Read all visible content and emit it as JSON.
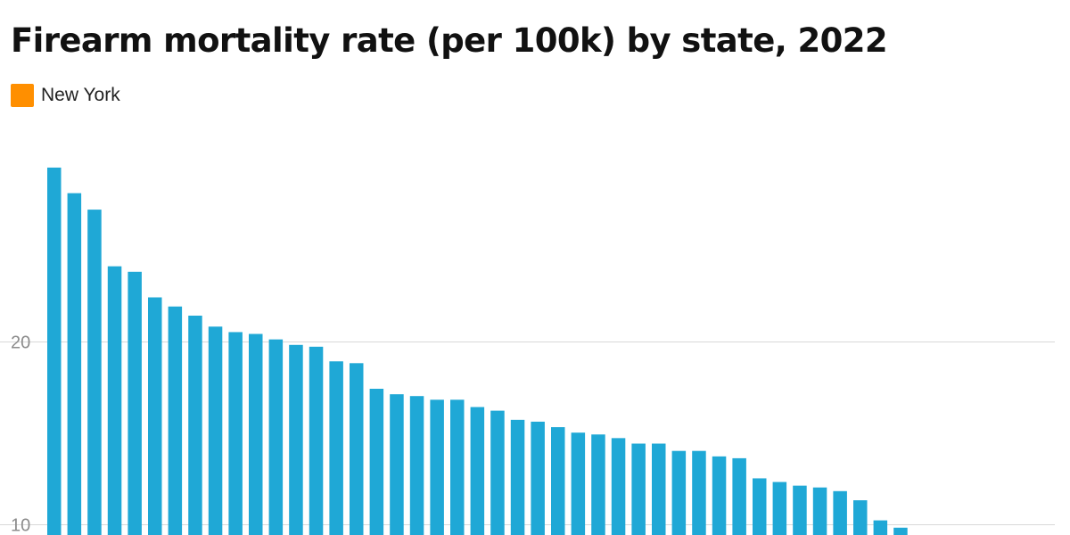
{
  "chart_data": {
    "type": "bar",
    "title": "Firearm mortality rate (per 100k) by state, 2022",
    "legend": [
      {
        "name": "New York",
        "color": "#ff8f00"
      }
    ],
    "bar_color": "#1fa8d6",
    "highlight_color": "#ff8f00",
    "xlabel": "",
    "ylabel": "",
    "ylim": [
      9.4,
      29.4
    ],
    "y_ticks": [
      10,
      20
    ],
    "grid": true,
    "values": [
      29.5,
      28.1,
      27.2,
      24.1,
      23.8,
      22.4,
      21.9,
      21.4,
      20.8,
      20.5,
      20.4,
      20.1,
      19.8,
      19.7,
      18.9,
      18.8,
      17.4,
      17.1,
      17.0,
      16.8,
      16.8,
      16.4,
      16.2,
      15.7,
      15.6,
      15.3,
      15.0,
      14.9,
      14.7,
      14.4,
      14.4,
      14.0,
      14.0,
      13.7,
      13.6,
      12.5,
      12.3,
      12.1,
      12.0,
      11.8,
      11.3,
      10.2,
      9.8
    ]
  }
}
